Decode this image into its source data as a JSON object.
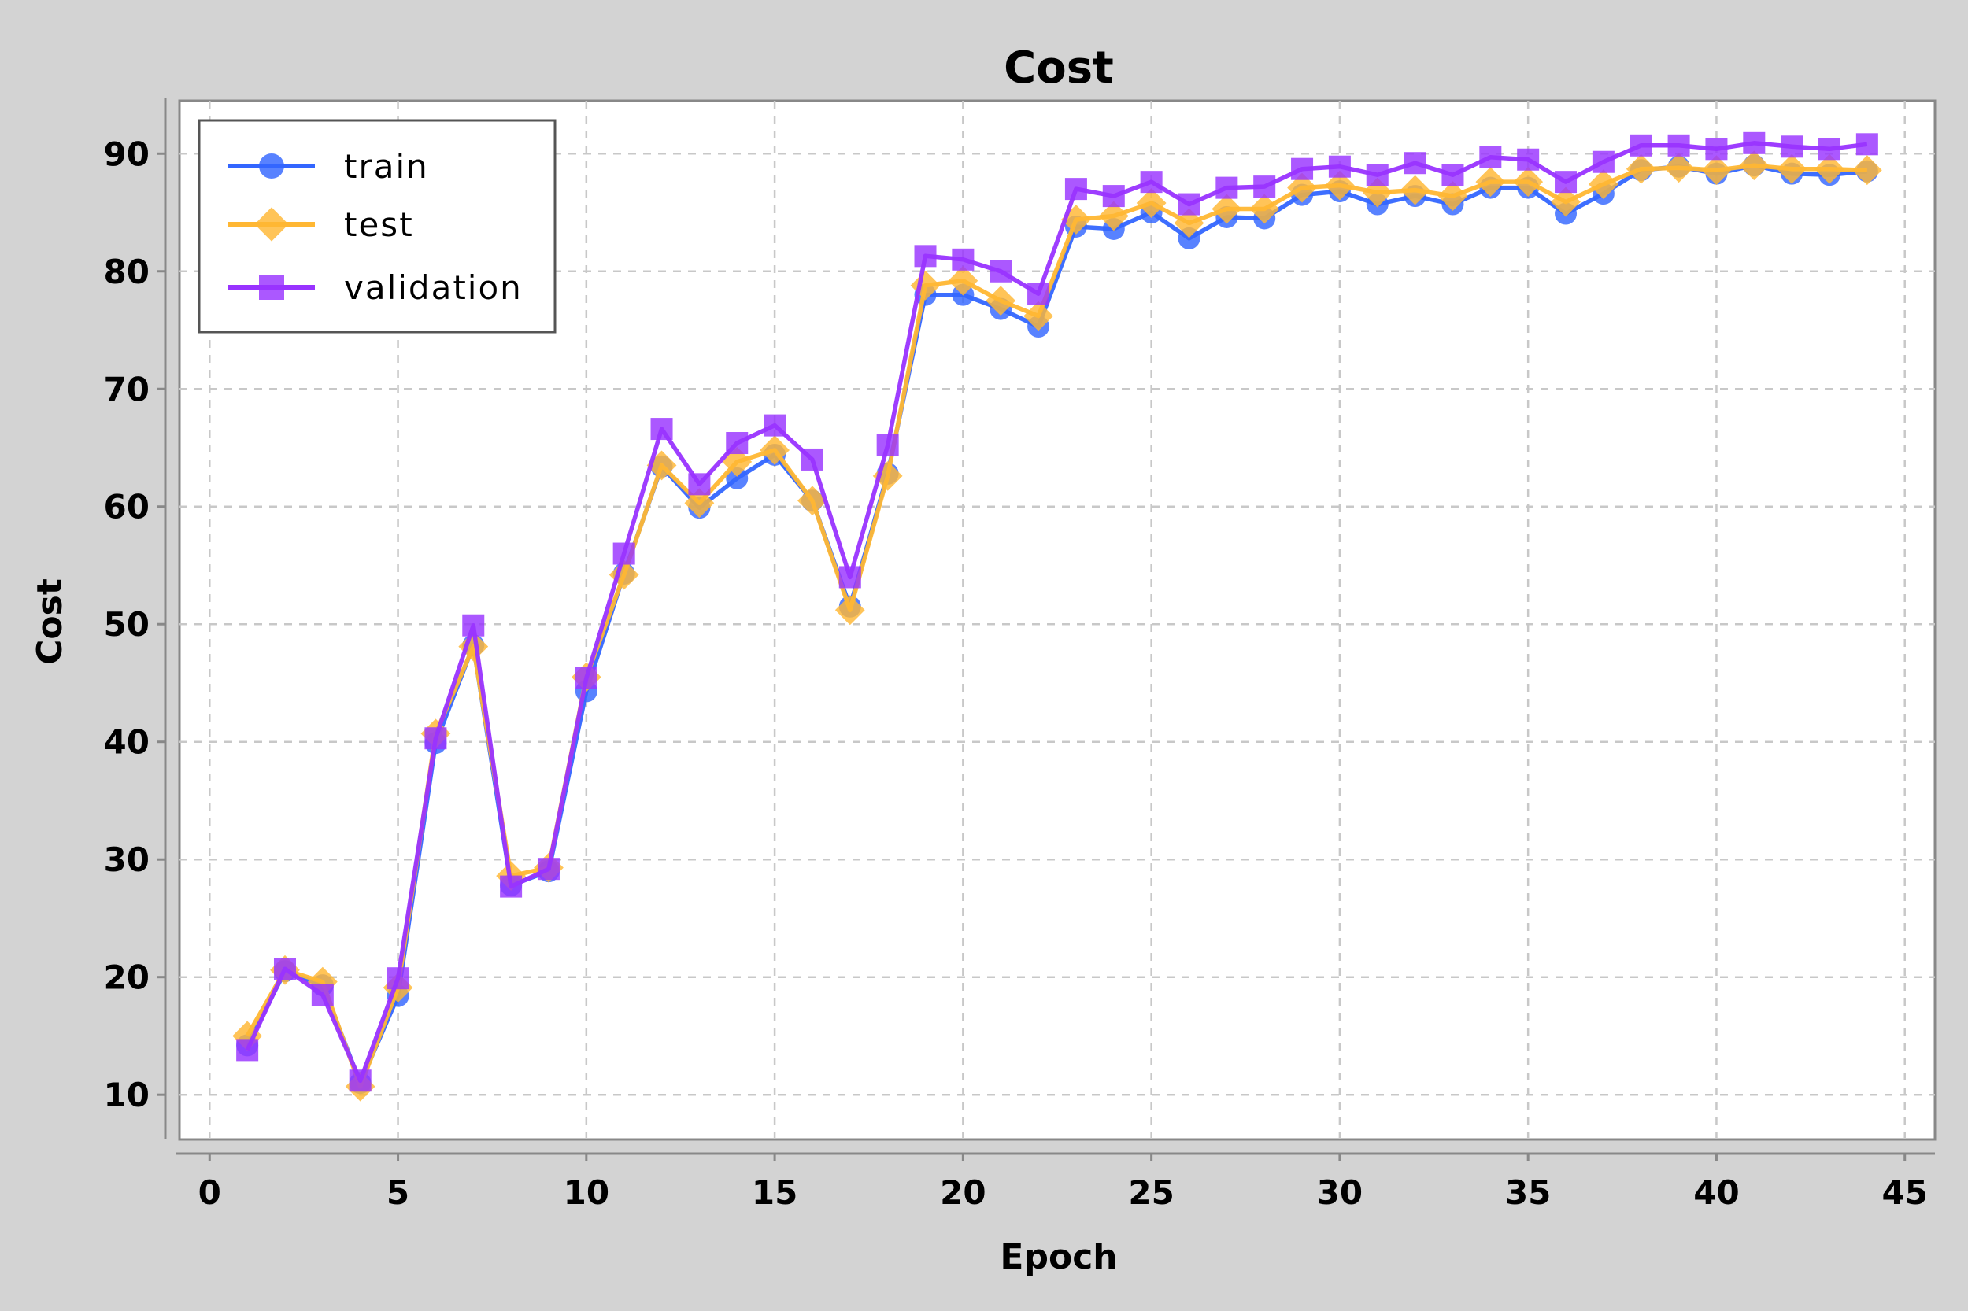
{
  "chart_data": {
    "type": "line",
    "title": "Cost",
    "xlabel": "Epoch",
    "ylabel": "Cost",
    "xlim": [
      -0.8,
      45.8
    ],
    "ylim": [
      6.2,
      94.5
    ],
    "xticks": [
      0,
      5,
      10,
      15,
      20,
      25,
      30,
      35,
      40,
      45
    ],
    "yticks": [
      10,
      20,
      30,
      40,
      50,
      60,
      70,
      80,
      90
    ],
    "grid": true,
    "legend_position": "top-left",
    "x": [
      1,
      2,
      3,
      4,
      5,
      6,
      7,
      8,
      9,
      10,
      11,
      12,
      13,
      14,
      15,
      16,
      17,
      18,
      19,
      20,
      21,
      22,
      23,
      24,
      25,
      26,
      27,
      28,
      29,
      30,
      31,
      32,
      33,
      34,
      35,
      36,
      37,
      38,
      39,
      40,
      41,
      42,
      43,
      44
    ],
    "series": [
      {
        "name": "train",
        "color": "#3366ff",
        "marker": "circle",
        "values": [
          14.2,
          20.5,
          19.3,
          11.0,
          18.4,
          39.9,
          48.2,
          27.8,
          29.0,
          44.3,
          54.3,
          63.4,
          59.9,
          62.4,
          64.4,
          60.5,
          51.5,
          62.8,
          78.0,
          78.0,
          76.8,
          75.3,
          83.8,
          83.6,
          85.0,
          82.8,
          84.6,
          84.5,
          86.5,
          86.8,
          85.7,
          86.4,
          85.7,
          87.1,
          87.1,
          84.9,
          86.6,
          88.6,
          88.9,
          88.3,
          89.0,
          88.3,
          88.2,
          88.5
        ]
      },
      {
        "name": "test",
        "color": "#ffb733",
        "marker": "diamond",
        "values": [
          15.0,
          20.6,
          19.6,
          10.7,
          19.1,
          40.7,
          48.1,
          28.6,
          29.3,
          45.5,
          54.2,
          63.5,
          60.3,
          63.8,
          64.8,
          60.5,
          51.2,
          62.6,
          78.8,
          79.2,
          77.5,
          76.2,
          84.4,
          84.7,
          85.8,
          84.1,
          85.3,
          85.3,
          87.1,
          87.3,
          86.7,
          86.9,
          86.4,
          87.6,
          87.6,
          85.9,
          87.4,
          88.7,
          88.8,
          88.6,
          89.0,
          88.7,
          88.7,
          88.6
        ]
      },
      {
        "name": "validation",
        "color": "#9933ff",
        "marker": "square",
        "values": [
          13.8,
          20.7,
          18.5,
          11.2,
          19.9,
          40.3,
          49.9,
          27.7,
          29.2,
          45.4,
          56.0,
          66.6,
          61.9,
          65.4,
          66.9,
          64.0,
          54.0,
          65.2,
          81.3,
          81.0,
          80.0,
          78.1,
          87.0,
          86.4,
          87.6,
          85.7,
          87.1,
          87.2,
          88.7,
          88.9,
          88.2,
          89.2,
          88.2,
          89.7,
          89.5,
          87.6,
          89.3,
          90.7,
          90.7,
          90.4,
          90.9,
          90.6,
          90.4,
          90.8
        ]
      }
    ]
  }
}
